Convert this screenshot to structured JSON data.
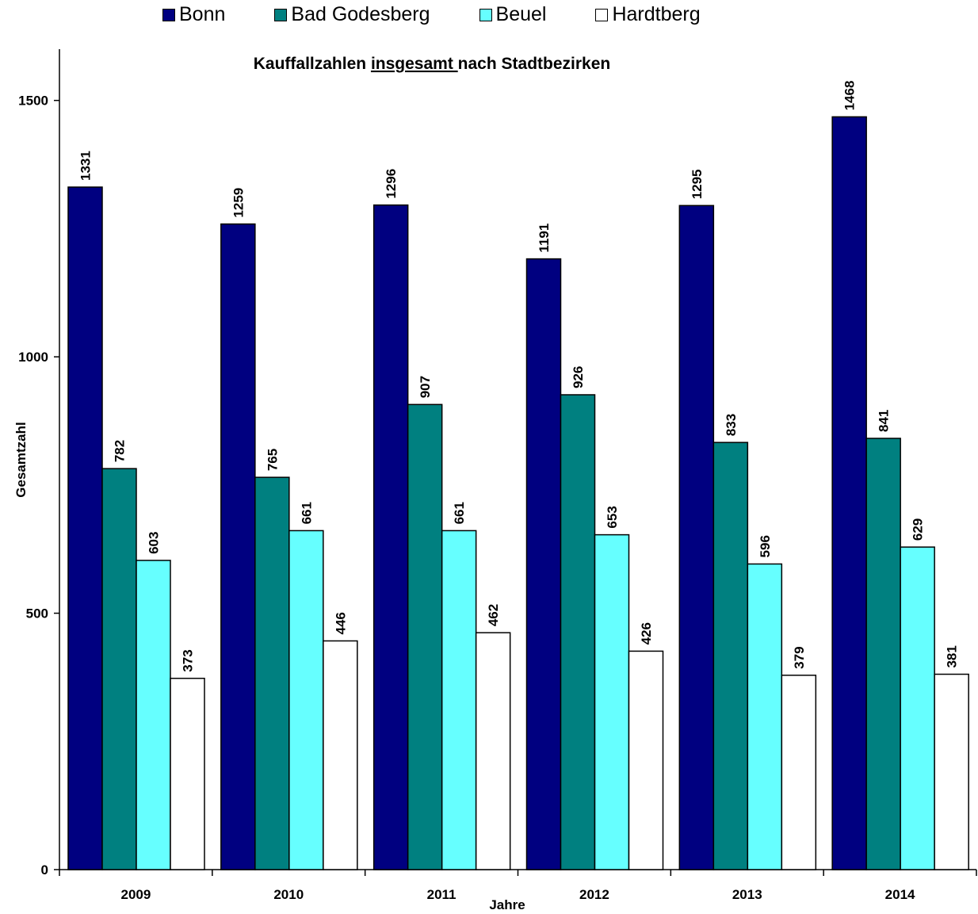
{
  "chart_data": {
    "type": "bar",
    "title_parts": [
      "Kauffallzahlen ",
      "insgesamt ",
      "nach Stadtbezirken"
    ],
    "xlabel": "Jahre",
    "ylabel": "Gesamtzahl",
    "categories": [
      "2009",
      "2010",
      "2011",
      "2012",
      "2013",
      "2014"
    ],
    "ylim": [
      0,
      1600
    ],
    "yticks": [
      "0",
      "500",
      "1000",
      "1500"
    ],
    "legend_position": "top",
    "grid": false,
    "series": [
      {
        "name": "Bonn",
        "color": "#000080",
        "values": [
          1331,
          1259,
          1296,
          1191,
          1295,
          1468
        ]
      },
      {
        "name": "Bad Godesberg",
        "color": "#008080",
        "values": [
          782,
          765,
          907,
          926,
          833,
          841
        ]
      },
      {
        "name": "Beuel",
        "color": "#66FFFF",
        "values": [
          603,
          661,
          661,
          653,
          596,
          629
        ]
      },
      {
        "name": "Hardtberg",
        "color": "#FFFFFF",
        "values": [
          373,
          446,
          462,
          426,
          379,
          381
        ]
      }
    ]
  }
}
